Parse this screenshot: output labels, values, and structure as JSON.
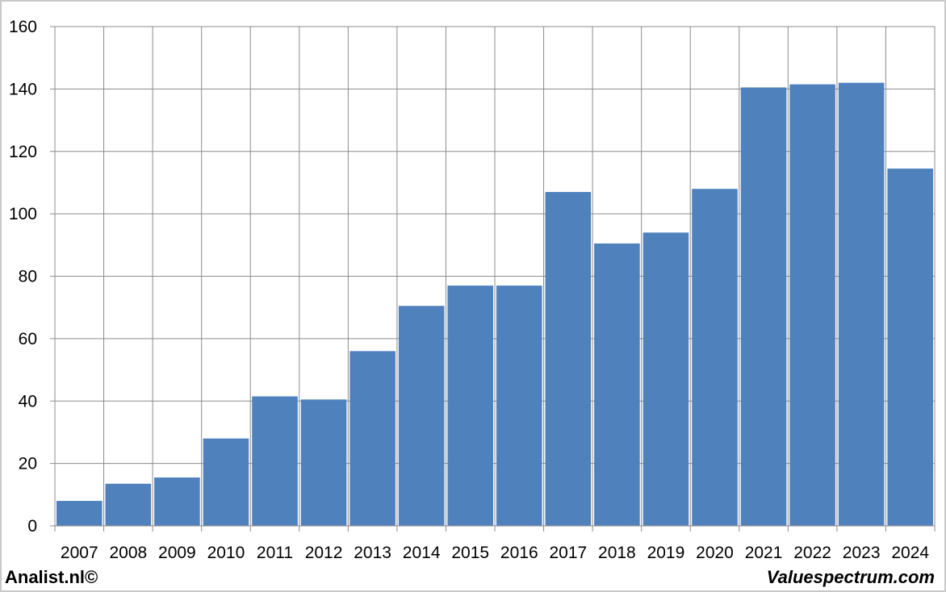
{
  "chart_data": {
    "type": "bar",
    "categories": [
      "2007",
      "2008",
      "2009",
      "2010",
      "2011",
      "2012",
      "2013",
      "2014",
      "2015",
      "2016",
      "2017",
      "2018",
      "2019",
      "2020",
      "2021",
      "2022",
      "2023",
      "2024"
    ],
    "values": [
      8,
      13.5,
      15.5,
      28,
      41.5,
      40.5,
      56,
      70.5,
      77,
      77,
      107,
      90.5,
      94,
      108,
      140.5,
      141.5,
      142,
      114.5
    ],
    "y_ticks": [
      "0",
      "20",
      "40",
      "60",
      "80",
      "100",
      "120",
      "140",
      "160"
    ],
    "ylim": [
      0,
      160
    ],
    "grid": true,
    "bar_color": "#4f81bd",
    "title": "",
    "xlabel": "",
    "ylabel": ""
  },
  "footer": {
    "left": "Analist.nl©",
    "right": "Valuespectrum.com"
  }
}
